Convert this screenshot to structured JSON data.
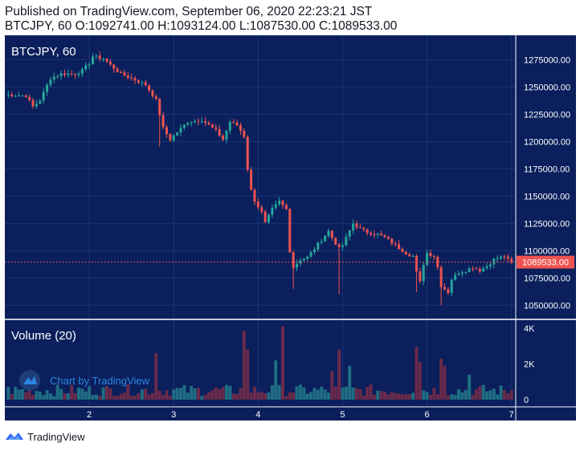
{
  "header": {
    "published": "Published on TradingView.com, September 06, 2020 22:23:21 JST",
    "ohlc": "BTCJPY, 60 O:1092741.00 H:1093124.00 L:1087530.00 C:1089533.00"
  },
  "footer": {
    "brand": "TradingView"
  },
  "watermark": {
    "label": "Chart by TradingView"
  },
  "colors": {
    "background": "#0a1f5c",
    "up": "#26a69a",
    "down": "#ef5350",
    "vol_up": "#1f6d83",
    "vol_down": "#6a2a4a",
    "grid": "#1a3478",
    "text": "#ffffff",
    "price_line": "#ef5350"
  },
  "chart_data": [
    {
      "type": "candlestick",
      "title": "BTCJPY, 60",
      "symbol": "BTCJPY",
      "interval": "60",
      "ylim": [
        1040000,
        1290000
      ],
      "y_ticks": [
        "1050000.00",
        "1075000.00",
        "1100000.00",
        "1125000.00",
        "1150000.00",
        "1175000.00",
        "1200000.00",
        "1225000.00",
        "1250000.00",
        "1275000.00"
      ],
      "x_ticks": [
        "2",
        "3",
        "4",
        "5",
        "6",
        "7"
      ],
      "x_tick_hours": [
        24,
        48,
        72,
        96,
        120,
        144
      ],
      "last_price": 1089533,
      "last_price_label": "1089533.00",
      "grid": true,
      "key_points": [
        [
          0,
          1243000
        ],
        [
          6,
          1242000
        ],
        [
          8,
          1232000
        ],
        [
          10,
          1238000
        ],
        [
          13,
          1258000
        ],
        [
          16,
          1262000
        ],
        [
          20,
          1262000
        ],
        [
          22,
          1265000
        ],
        [
          24,
          1272000
        ],
        [
          25,
          1278000
        ],
        [
          28,
          1276000
        ],
        [
          30,
          1270000
        ],
        [
          33,
          1262000
        ],
        [
          36,
          1258000
        ],
        [
          40,
          1252000
        ],
        [
          43,
          1238000
        ],
        [
          44,
          1225000
        ],
        [
          45,
          1212000
        ],
        [
          47,
          1202000
        ],
        [
          50,
          1212000
        ],
        [
          52,
          1218000
        ],
        [
          54,
          1219000
        ],
        [
          56,
          1220000
        ],
        [
          58,
          1215000
        ],
        [
          60,
          1210000
        ],
        [
          62,
          1202000
        ],
        [
          64,
          1218000
        ],
        [
          66,
          1215000
        ],
        [
          68,
          1205000
        ],
        [
          69,
          1175000
        ],
        [
          70,
          1155000
        ],
        [
          71,
          1146000
        ],
        [
          73,
          1135000
        ],
        [
          74,
          1125000
        ],
        [
          76,
          1138000
        ],
        [
          78,
          1145000
        ],
        [
          80,
          1138000
        ],
        [
          81,
          1100000
        ],
        [
          82,
          1085000
        ],
        [
          84,
          1092000
        ],
        [
          86,
          1094000
        ],
        [
          87,
          1098000
        ],
        [
          90,
          1110000
        ],
        [
          92,
          1118000
        ],
        [
          93,
          1112000
        ],
        [
          95,
          1102000
        ],
        [
          96,
          1105000
        ],
        [
          99,
          1125000
        ],
        [
          101,
          1120000
        ],
        [
          103,
          1117000
        ],
        [
          106,
          1115000
        ],
        [
          108,
          1112000
        ],
        [
          111,
          1105000
        ],
        [
          114,
          1098000
        ],
        [
          116,
          1095000
        ],
        [
          117,
          1080000
        ],
        [
          118,
          1071000
        ],
        [
          119,
          1088000
        ],
        [
          120,
          1098000
        ],
        [
          122,
          1095000
        ],
        [
          123,
          1085000
        ],
        [
          124,
          1068000
        ],
        [
          126,
          1062000
        ],
        [
          127,
          1074000
        ],
        [
          129,
          1080000
        ],
        [
          131,
          1082000
        ],
        [
          133,
          1085000
        ],
        [
          135,
          1082000
        ],
        [
          137,
          1086000
        ],
        [
          139,
          1092000
        ],
        [
          141,
          1094000
        ],
        [
          142,
          1095000
        ],
        [
          143,
          1092741
        ],
        [
          144,
          1089533
        ]
      ]
    },
    {
      "type": "bar",
      "title": "Volume (20)",
      "y_ticks": [
        "0",
        "2K",
        "4K"
      ],
      "ylim": [
        0,
        4000
      ],
      "spikes": [
        {
          "hour": 43,
          "value": 2600
        },
        {
          "hour": 68,
          "value": 3850
        },
        {
          "hour": 69,
          "value": 2800
        },
        {
          "hour": 77,
          "value": 2200
        },
        {
          "hour": 79,
          "value": 4100
        },
        {
          "hour": 93,
          "value": 1600
        },
        {
          "hour": 95,
          "value": 2800
        },
        {
          "hour": 98,
          "value": 1900
        },
        {
          "hour": 117,
          "value": 2950
        },
        {
          "hour": 118,
          "value": 2100
        },
        {
          "hour": 124,
          "value": 2300
        },
        {
          "hour": 125,
          "value": 1900
        },
        {
          "hour": 132,
          "value": 1400
        }
      ]
    }
  ]
}
